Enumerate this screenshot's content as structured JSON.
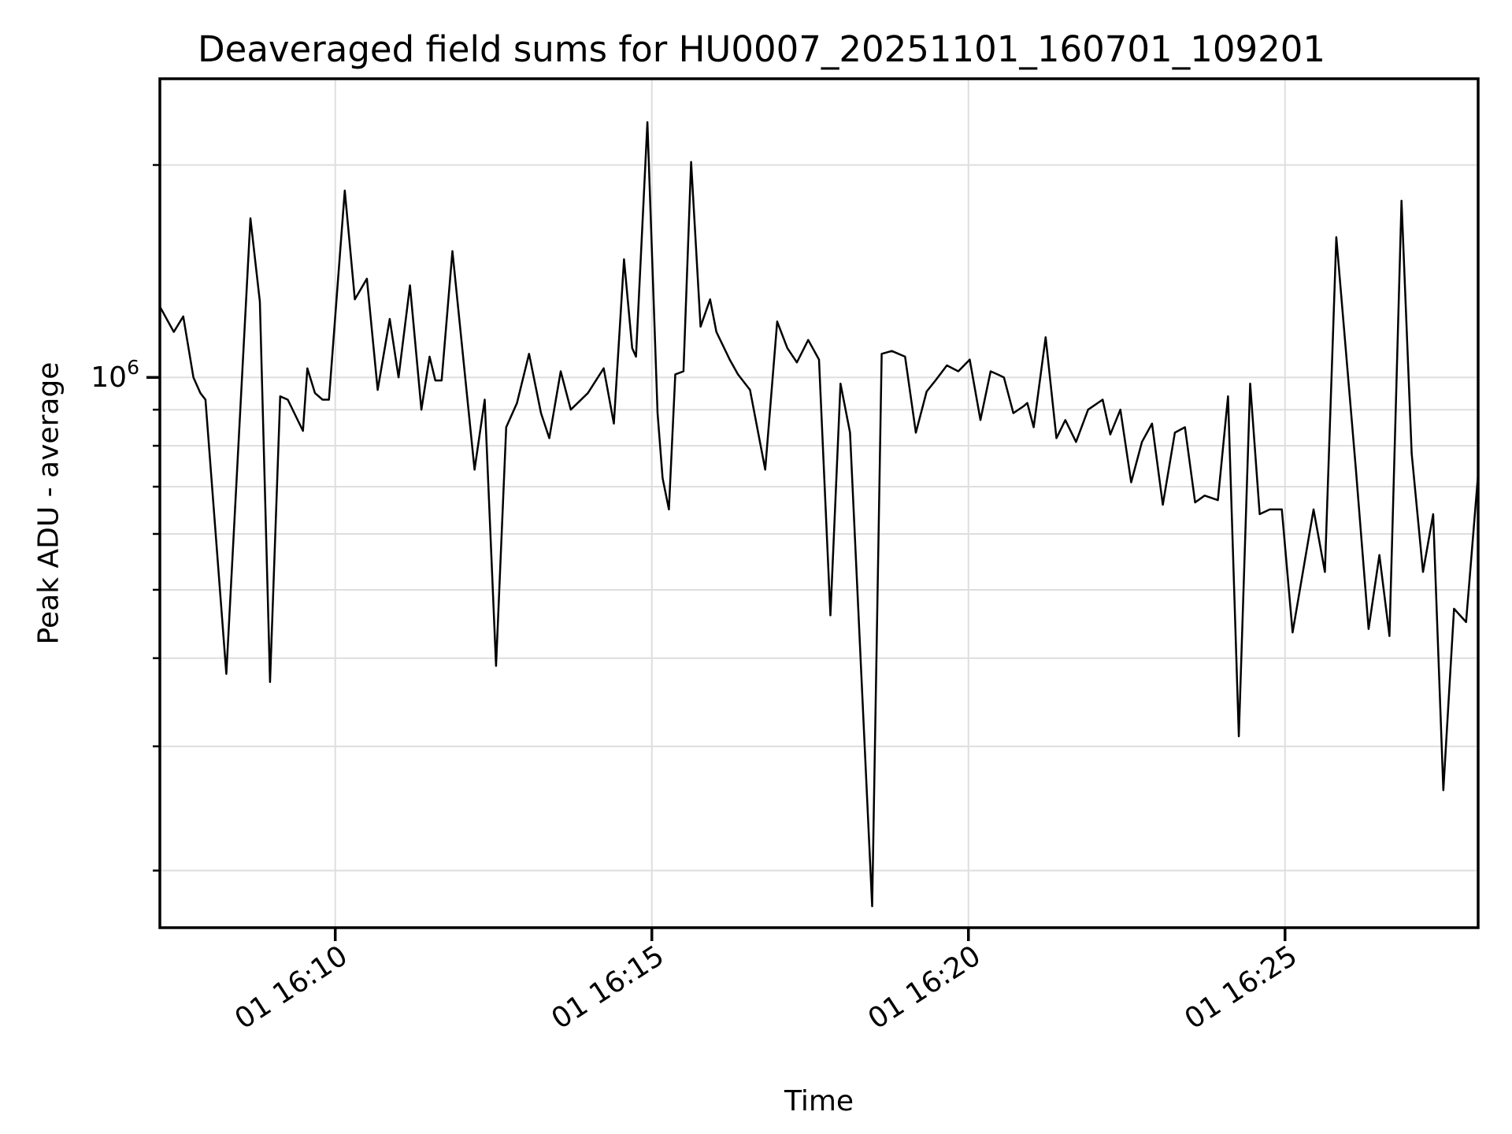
{
  "title": "Deaveraged field sums for HU0007_20251101_160701_109201",
  "style": {
    "background": "#ffffff",
    "text_color": "#000000",
    "axis_color": "#000000",
    "grid_color": "#dedede",
    "line_color": "#000000"
  },
  "chart_data": {
    "type": "line",
    "title": "Deaveraged field sums for HU0007_20251101_160701_109201",
    "xlabel": "Time",
    "ylabel": "Peak ADU - average",
    "yscale": "log",
    "grid": true,
    "legend": "none",
    "ylim": [
      166000,
      2650000
    ],
    "xlim_minutes": [
      7.23,
      28.05
    ],
    "x_ticks": [
      {
        "minutes": 10,
        "label": "01 16:10"
      },
      {
        "minutes": 15,
        "label": "01 16:15"
      },
      {
        "minutes": 20,
        "label": "01 16:20"
      },
      {
        "minutes": 25,
        "label": "01 16:25"
      }
    ],
    "y_major_tick": {
      "value": 1000000,
      "label_base": "10",
      "label_exp": "6"
    },
    "y_minor_ticks": [
      200000,
      300000,
      400000,
      500000,
      600000,
      700000,
      800000,
      900000,
      2000000
    ],
    "series": [
      {
        "name": "peak-adu-average",
        "x_minutes_after_1600": [
          7.23,
          7.45,
          7.6,
          7.76,
          7.87,
          7.95,
          8.28,
          8.66,
          8.81,
          8.97,
          9.13,
          9.25,
          9.49,
          9.56,
          9.68,
          9.8,
          9.9,
          10.15,
          10.31,
          10.5,
          10.67,
          10.86,
          11.0,
          11.18,
          11.36,
          11.49,
          11.58,
          11.68,
          11.85,
          12.2,
          12.36,
          12.54,
          12.7,
          12.87,
          13.06,
          13.25,
          13.38,
          13.56,
          13.72,
          13.99,
          14.24,
          14.4,
          14.56,
          14.69,
          14.75,
          14.93,
          15.09,
          15.17,
          15.27,
          15.37,
          15.5,
          15.62,
          15.77,
          15.92,
          16.02,
          16.23,
          16.36,
          16.55,
          16.79,
          16.98,
          17.14,
          17.29,
          17.47,
          17.64,
          17.82,
          17.98,
          18.13,
          18.48,
          18.63,
          18.79,
          19.0,
          19.17,
          19.34,
          19.48,
          19.66,
          19.84,
          20.02,
          20.19,
          20.35,
          20.46,
          20.56,
          20.71,
          20.87,
          20.93,
          21.03,
          21.22,
          21.39,
          21.53,
          21.7,
          21.89,
          22.12,
          22.24,
          22.4,
          22.57,
          22.74,
          22.9,
          23.07,
          23.26,
          23.42,
          23.58,
          23.73,
          23.94,
          24.1,
          24.27,
          24.45,
          24.6,
          24.76,
          24.95,
          25.12,
          25.45,
          25.63,
          25.81,
          26.12,
          26.32,
          26.49,
          26.65,
          26.84,
          27.0,
          27.18,
          27.34,
          27.5,
          27.67,
          27.86,
          28.05
        ],
        "values": [
          1260000,
          1160000,
          1220000,
          1000000,
          950000,
          930000,
          380000,
          1680000,
          1280000,
          370000,
          940000,
          930000,
          840000,
          1030000,
          950000,
          930000,
          930000,
          1840000,
          1290000,
          1380000,
          960000,
          1210000,
          1000000,
          1350000,
          900000,
          1070000,
          990000,
          990000,
          1510000,
          740000,
          930000,
          390000,
          850000,
          920000,
          1080000,
          890000,
          820000,
          1020000,
          900000,
          950000,
          1030000,
          860000,
          1470000,
          1100000,
          1070000,
          2300000,
          890000,
          720000,
          650000,
          1010000,
          1020000,
          2020000,
          1180000,
          1290000,
          1160000,
          1060000,
          1010000,
          960000,
          740000,
          1200000,
          1100000,
          1050000,
          1130000,
          1060000,
          460000,
          980000,
          835000,
          178000,
          1080000,
          1090000,
          1070000,
          835000,
          955000,
          990000,
          1040000,
          1020000,
          1060000,
          870000,
          1020000,
          1010000,
          1000000,
          890000,
          910000,
          920000,
          850000,
          1140000,
          820000,
          870000,
          810000,
          900000,
          930000,
          830000,
          900000,
          710000,
          810000,
          860000,
          660000,
          835000,
          850000,
          665000,
          680000,
          670000,
          940000,
          310000,
          980000,
          640000,
          650000,
          650000,
          435000,
          650000,
          530000,
          1580000,
          740000,
          440000,
          560000,
          430000,
          1780000,
          780000,
          530000,
          640000,
          260000,
          470000,
          450000,
          730000
        ]
      }
    ]
  }
}
